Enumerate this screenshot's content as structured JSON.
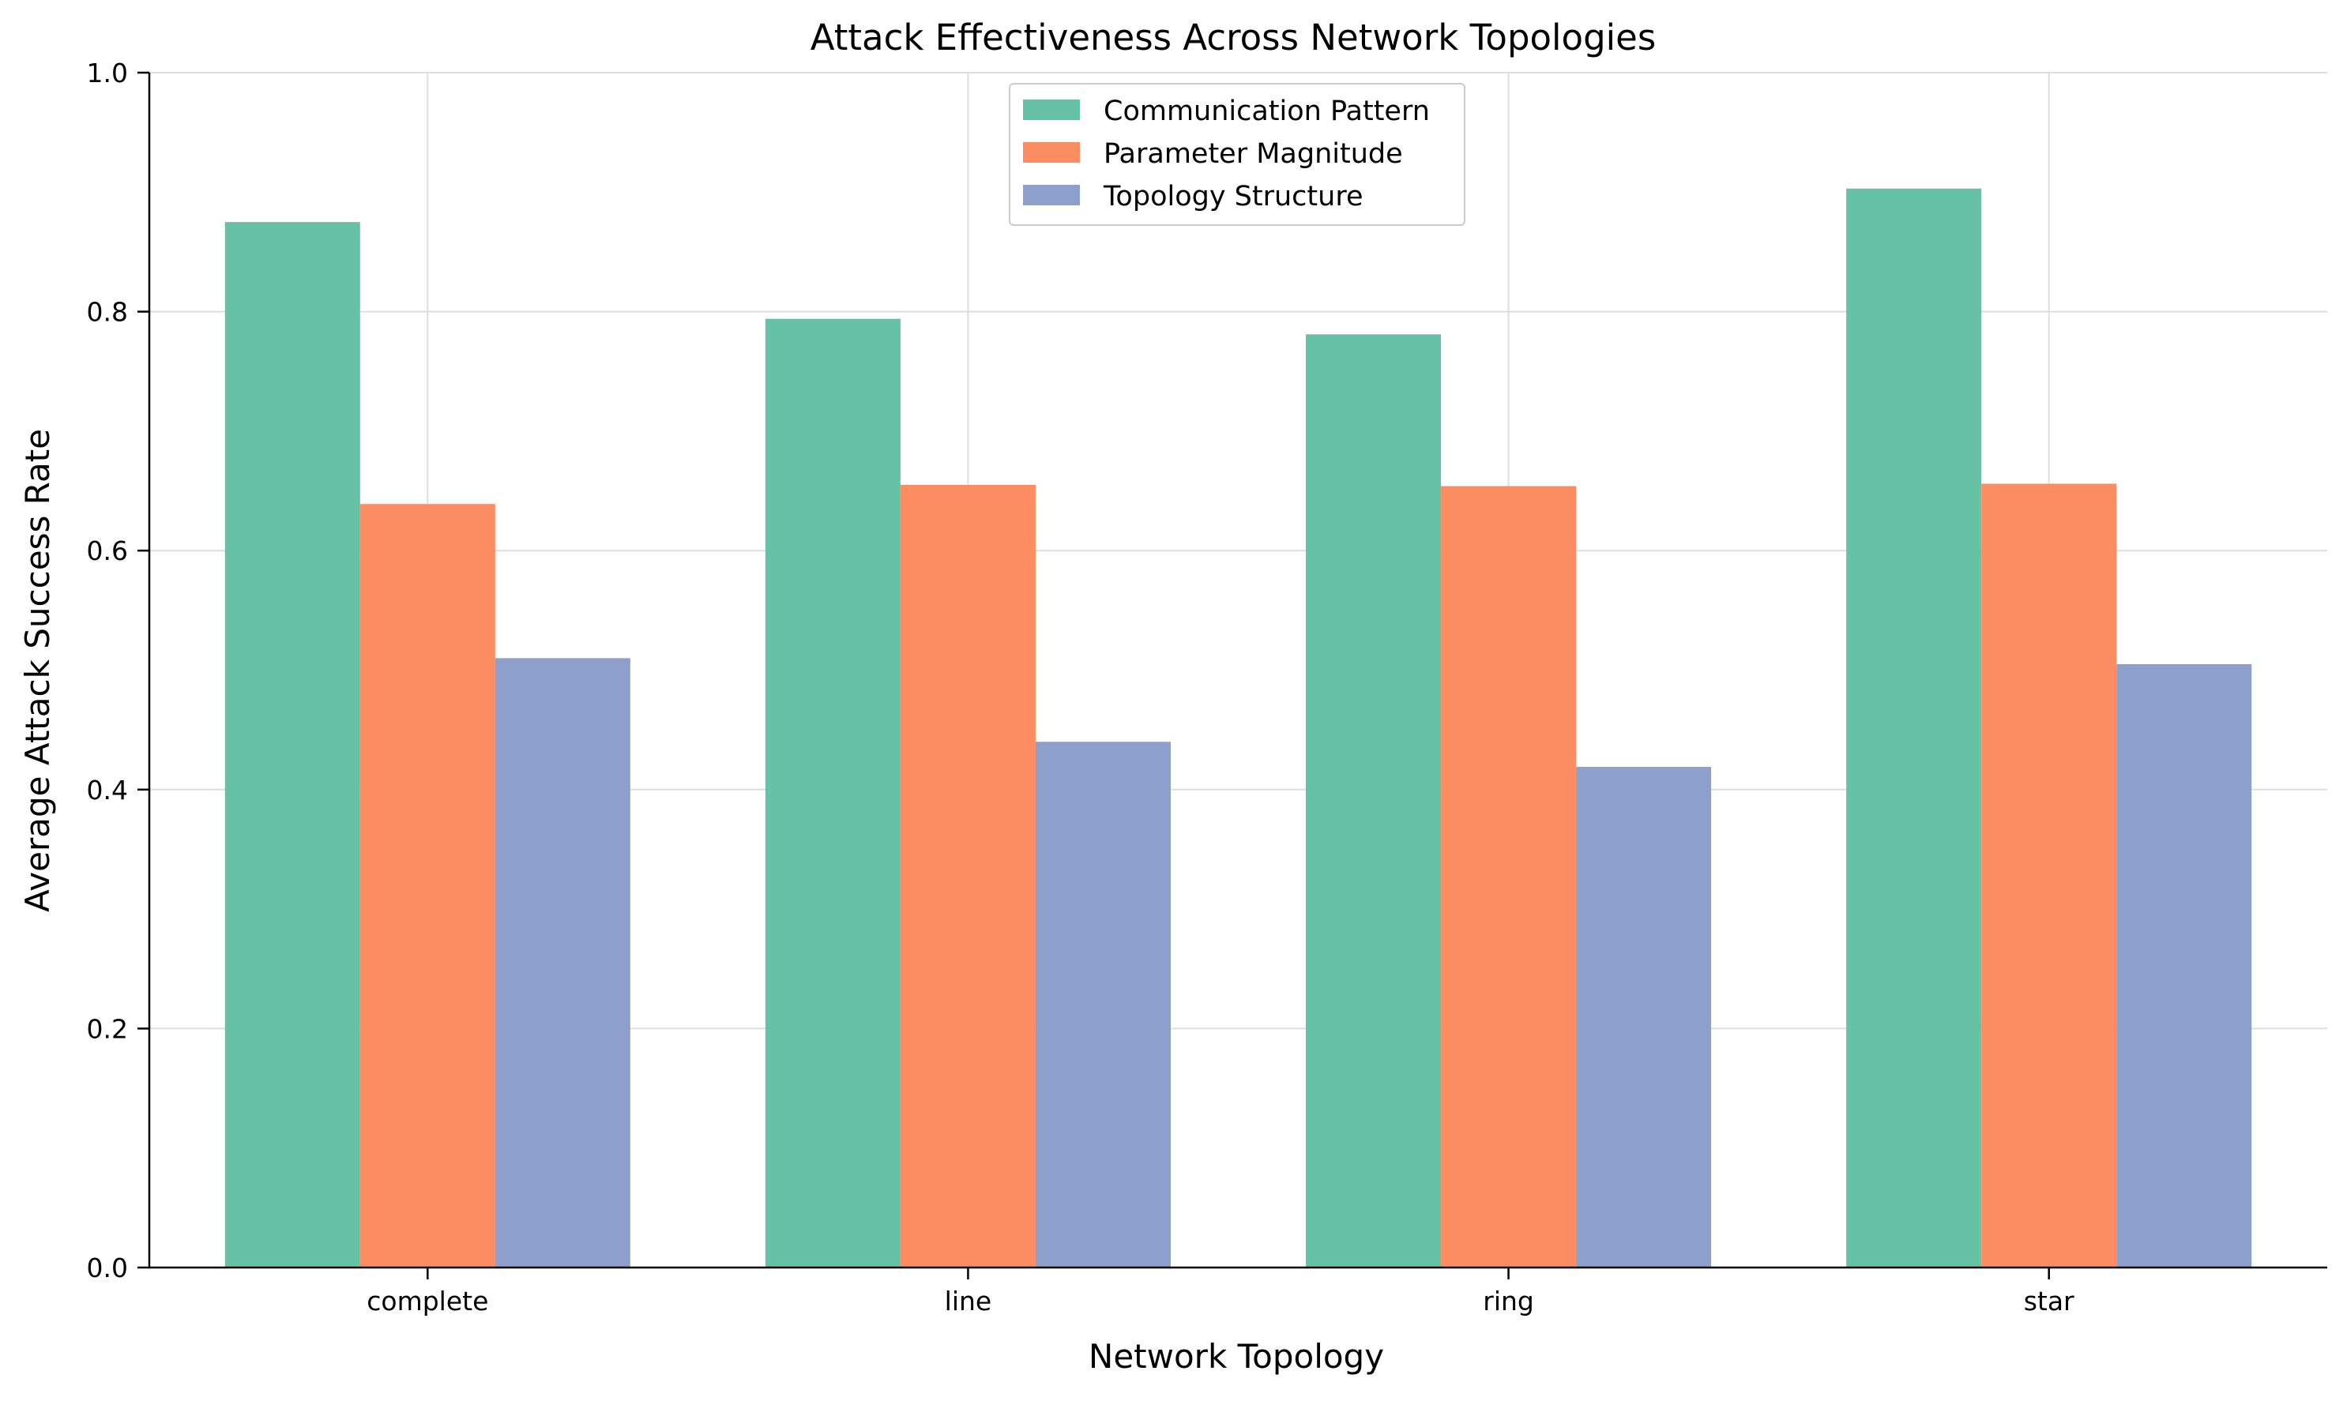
{
  "chart_data": {
    "type": "bar",
    "title": "Attack Effectiveness Across Network Topologies",
    "xlabel": "Network Topology",
    "ylabel": "Average Attack Success Rate",
    "categories": [
      "complete",
      "line",
      "ring",
      "star"
    ],
    "series": [
      {
        "name": "Communication Pattern",
        "values": [
          0.875,
          0.794,
          0.781,
          0.903
        ],
        "color": "#66c2a5"
      },
      {
        "name": "Parameter Magnitude",
        "values": [
          0.639,
          0.655,
          0.654,
          0.656
        ],
        "color": "#fc8d62"
      },
      {
        "name": "Topology Structure",
        "values": [
          0.51,
          0.44,
          0.419,
          0.505
        ],
        "color": "#8da0cb"
      }
    ],
    "ylim": [
      0,
      1.0
    ],
    "yticks": [
      "0.0",
      "0.2",
      "0.4",
      "0.6",
      "0.8",
      "1.0"
    ],
    "grid": true,
    "legend_position": "top-center"
  }
}
